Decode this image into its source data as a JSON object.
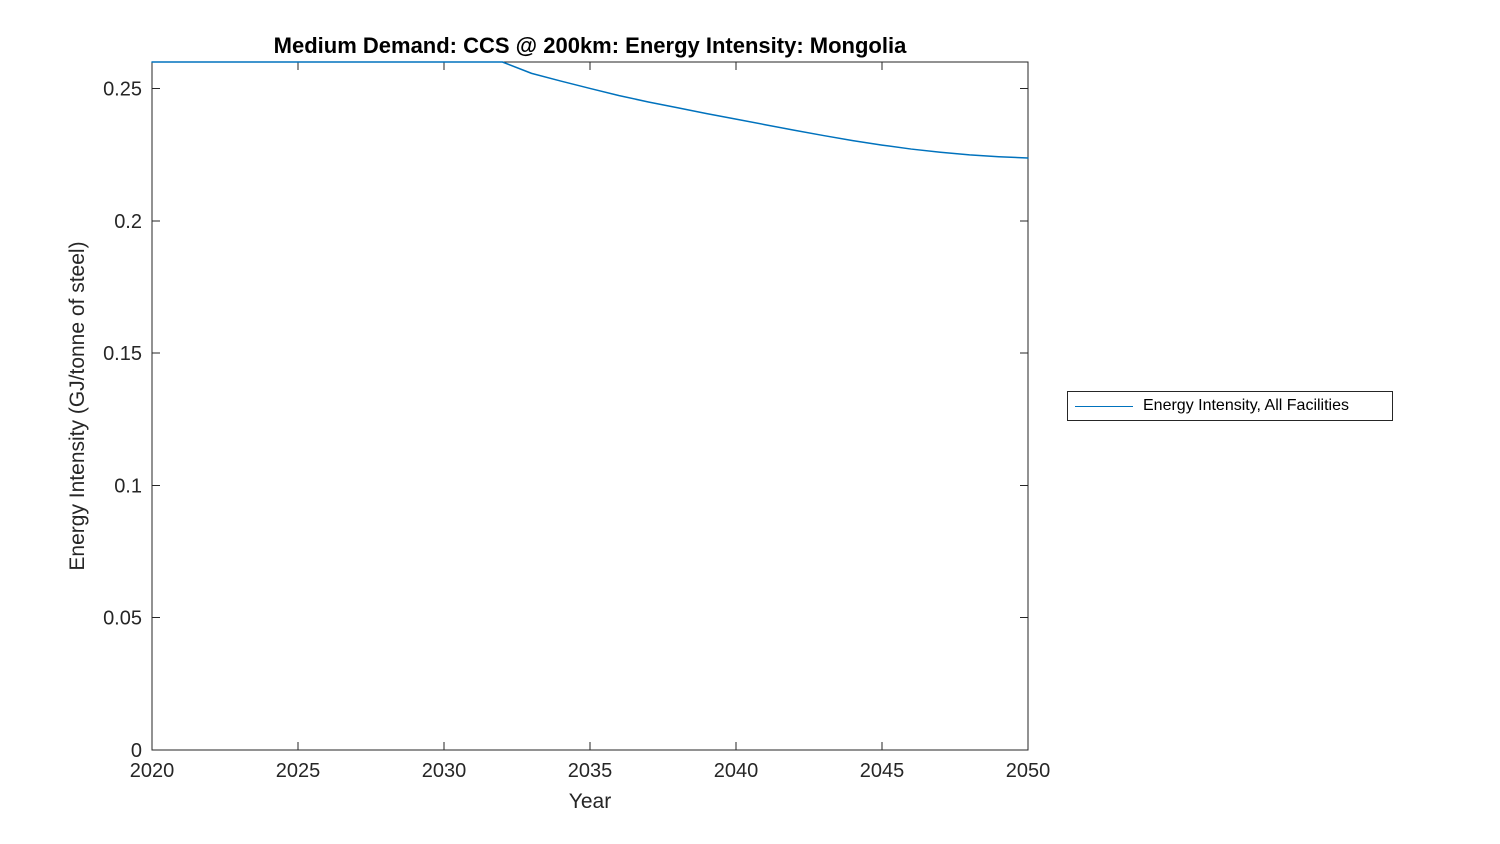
{
  "figure": {
    "background": "#ffffff"
  },
  "chart_data": {
    "type": "line",
    "title": "Medium Demand: CCS @ 200km: Energy Intensity: Mongolia",
    "xlabel": "Year",
    "ylabel": "Energy Intensity (GJ/tonne of steel)",
    "xlim": [
      2020,
      2050
    ],
    "ylim": [
      0,
      0.26
    ],
    "x_tick_values": [
      2020,
      2025,
      2030,
      2035,
      2040,
      2045,
      2050
    ],
    "x_tick_labels": [
      "2020",
      "2025",
      "2030",
      "2035",
      "2040",
      "2045",
      "2050"
    ],
    "y_tick_values": [
      0,
      0.05,
      0.1,
      0.15,
      0.2,
      0.25
    ],
    "y_tick_labels": [
      "0",
      "0.05",
      "0.1",
      "0.15",
      "0.2",
      "0.25"
    ],
    "grid": false,
    "box": true,
    "tick_direction": "in",
    "legend_position": "outside-right",
    "series": [
      {
        "name": "Energy Intensity, All Facilities",
        "color": "#0072BD",
        "x": [
          2020,
          2021,
          2022,
          2023,
          2024,
          2025,
          2026,
          2027,
          2028,
          2029,
          2030,
          2031,
          2032,
          2033,
          2034,
          2035,
          2036,
          2037,
          2038,
          2039,
          2040,
          2041,
          2042,
          2043,
          2044,
          2045,
          2046,
          2047,
          2048,
          2049,
          2050
        ],
        "y": [
          0.26,
          0.26,
          0.26,
          0.26,
          0.26,
          0.26,
          0.26,
          0.26,
          0.26,
          0.26,
          0.26,
          0.26,
          0.26,
          0.2557,
          0.2528,
          0.25,
          0.2473,
          0.2449,
          0.2427,
          0.2405,
          0.2384,
          0.2363,
          0.2342,
          0.2322,
          0.2303,
          0.2286,
          0.2271,
          0.2259,
          0.2249,
          0.2242,
          0.2237
        ]
      }
    ]
  },
  "legend": {
    "entries": [
      {
        "label": "Energy Intensity, All Facilities",
        "color": "#0072BD"
      }
    ]
  },
  "colors": {
    "line": "#0072BD",
    "axis": "#262626",
    "text": "#262626",
    "background": "#ffffff"
  }
}
